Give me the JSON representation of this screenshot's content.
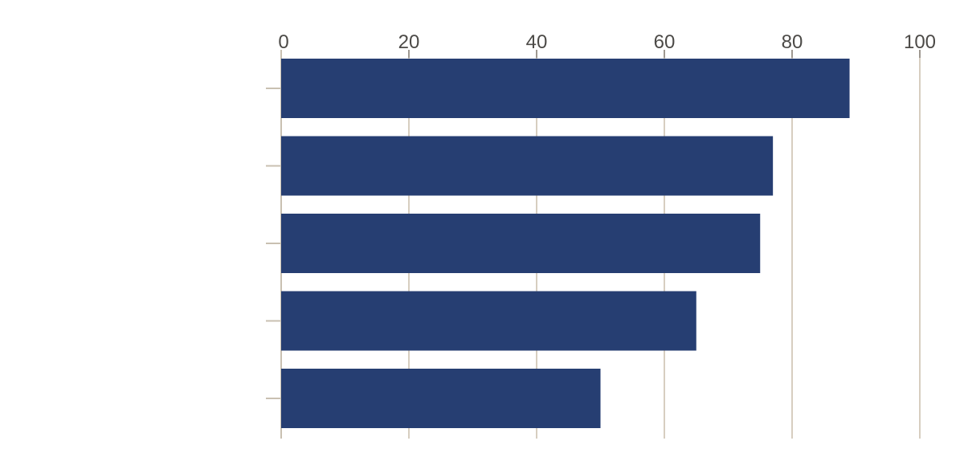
{
  "chart_data": {
    "type": "bar",
    "orientation": "horizontal",
    "title": "",
    "xlabel": "",
    "ylabel": "",
    "categories": [
      "",
      "",
      "",
      "",
      ""
    ],
    "values": [
      89,
      77,
      75,
      65,
      50
    ],
    "xlim": [
      0,
      100
    ],
    "xticks": [
      "0",
      "20",
      "40",
      "60",
      "80",
      "100"
    ],
    "xtick_values": [
      0,
      20,
      40,
      60,
      80,
      100
    ],
    "axis_position": "top",
    "grid": true,
    "legend": "none",
    "colors": {
      "bar": "#263e72",
      "gridline": "#d7cec0",
      "axis_line": "#c9c0b1",
      "top_tick": "#9e9890",
      "label": "#4c4a47",
      "background": "#ffffff"
    }
  }
}
